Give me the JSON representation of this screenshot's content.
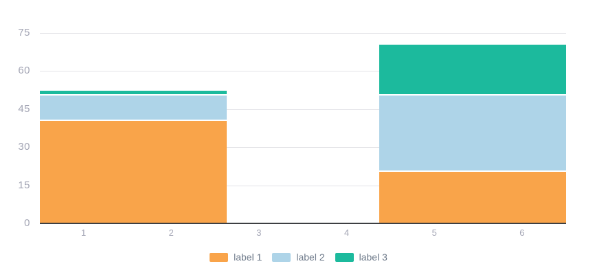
{
  "chart": {
    "background_color": "#ffffff",
    "axis_line_color": "#3d3f42",
    "grid_color": "#e3e3e7",
    "tick_label_color": "#a4a6b5",
    "legend_text_color": "#6e7a8a",
    "segment_gap_color": "#ffffff"
  },
  "chart_data": {
    "type": "bar",
    "stacked": true,
    "title": "",
    "xlabel": "",
    "ylabel": "",
    "grid": true,
    "legend_position": "bottom",
    "x_tick_labels": [
      "1",
      "2",
      "3",
      "4",
      "5",
      "6"
    ],
    "y_ticks": [
      0,
      15,
      30,
      45,
      60,
      75
    ],
    "ylim": [
      0,
      75
    ],
    "series": [
      {
        "name": "label 1",
        "color": "#f9a44a"
      },
      {
        "name": "label 2",
        "color": "#aed4e8"
      },
      {
        "name": "label 3",
        "color": "#1cba9d"
      }
    ],
    "bars": [
      {
        "x_span": [
          0,
          2.13
        ],
        "segments": [
          40,
          10,
          2
        ],
        "total": 52
      },
      {
        "x_span": [
          3.87,
          6
        ],
        "segments": [
          20,
          30,
          20
        ],
        "total": 70
      }
    ]
  }
}
